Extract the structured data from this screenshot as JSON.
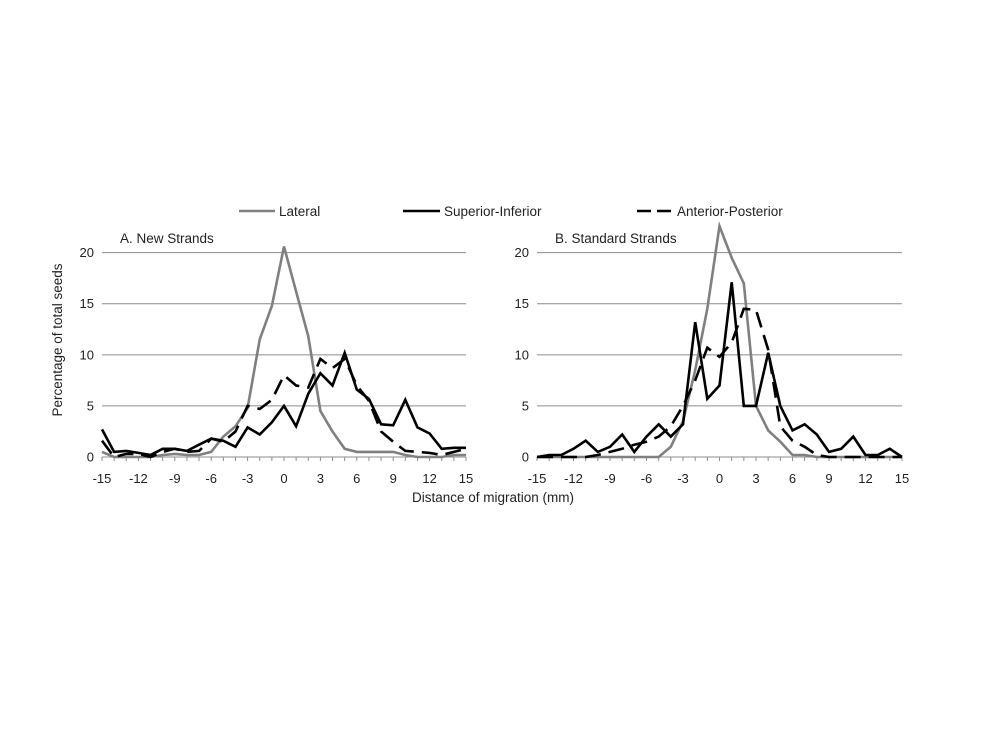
{
  "chart_data": [
    {
      "type": "line",
      "title": "A.  New Strands",
      "xlabel": "Distance of migration (mm)",
      "ylabel": "Percentage of total seeds",
      "xlim": [
        -15,
        15
      ],
      "ylim": [
        0,
        23
      ],
      "xticks": [
        "-15",
        "-12",
        "-9",
        "-6",
        "-3",
        "0",
        "3",
        "6",
        "9",
        "12",
        "15"
      ],
      "yticks": [
        "0",
        "5",
        "10",
        "15",
        "20"
      ],
      "grid": "horizontal",
      "x": [
        -15,
        -14,
        -13,
        -12,
        -11,
        -10,
        -9,
        -8,
        -7,
        -6,
        -5,
        -4,
        -3,
        -2,
        -1,
        0,
        1,
        2,
        3,
        4,
        5,
        6,
        7,
        8,
        9,
        10,
        11,
        12,
        13,
        14,
        15
      ],
      "series": [
        {
          "name": "Lateral",
          "color": "#808080",
          "dash": "solid",
          "values": [
            0.5,
            0,
            0,
            0,
            0,
            0.2,
            0.3,
            0.2,
            0.2,
            0.5,
            2,
            3,
            4.8,
            11.5,
            14.8,
            20.6,
            16.2,
            11.8,
            4.5,
            2.5,
            0.8,
            0.5,
            0.5,
            0.5,
            0.5,
            0.2,
            0,
            0,
            0,
            0.2,
            0.2
          ]
        },
        {
          "name": "Superior-Inferior",
          "color": "#000000",
          "dash": "solid",
          "values": [
            2.7,
            0.5,
            0.6,
            0.4,
            0.2,
            0.8,
            0.8,
            0.6,
            1.2,
            1.8,
            1.6,
            1.0,
            2.9,
            2.2,
            3.4,
            5.0,
            3.0,
            6.2,
            8.2,
            7.0,
            10.2,
            6.6,
            5.7,
            3.2,
            3.1,
            5.6,
            2.9,
            2.3,
            0.8,
            0.9,
            0.9
          ]
        },
        {
          "name": "Anterior-Posterior",
          "color": "#000000",
          "dash": "dashed",
          "values": [
            1.6,
            0,
            0.3,
            0.3,
            0,
            0.5,
            0.8,
            0.5,
            0.6,
            1.8,
            1.5,
            2.5,
            5.0,
            4.7,
            5.6,
            8.0,
            7.0,
            6.8,
            9.6,
            8.7,
            9.6,
            7.0,
            5.5,
            2.5,
            1.5,
            0.6,
            0.5,
            0.4,
            0.2,
            0.5,
            0.8
          ]
        }
      ]
    },
    {
      "type": "line",
      "title": "B.  Standard Strands",
      "xlabel": "Distance of migration (mm)",
      "ylabel": "",
      "xlim": [
        -15,
        15
      ],
      "ylim": [
        0,
        23
      ],
      "xticks": [
        "-15",
        "-12",
        "-9",
        "-6",
        "-3",
        "0",
        "3",
        "6",
        "9",
        "12",
        "15"
      ],
      "yticks": [
        "0",
        "5",
        "10",
        "15",
        "20"
      ],
      "grid": "horizontal",
      "x": [
        -15,
        -14,
        -13,
        -12,
        -11,
        -10,
        -9,
        -8,
        -7,
        -6,
        -5,
        -4,
        -3,
        -2,
        -1,
        0,
        1,
        2,
        3,
        4,
        5,
        6,
        7,
        8,
        9,
        10,
        11,
        12,
        13,
        14,
        15
      ],
      "series": [
        {
          "name": "Lateral",
          "color": "#808080",
          "dash": "solid",
          "values": [
            0,
            0,
            0,
            0,
            0,
            0,
            0,
            0,
            0,
            0,
            0,
            1.0,
            3.5,
            8.5,
            14.5,
            22.6,
            19.5,
            17.0,
            5.0,
            2.6,
            1.5,
            0.2,
            0.2,
            0,
            0,
            0,
            0,
            0,
            0,
            0,
            0
          ]
        },
        {
          "name": "Superior-Inferior",
          "color": "#000000",
          "dash": "solid",
          "values": [
            0,
            0.2,
            0.2,
            0.8,
            1.6,
            0.5,
            1.0,
            2.2,
            0.5,
            2.0,
            3.2,
            2.0,
            3.2,
            13.2,
            5.7,
            7.0,
            17.1,
            5.0,
            5.0,
            10.2,
            5.0,
            2.6,
            3.2,
            2.2,
            0.5,
            0.8,
            2.0,
            0.2,
            0.2,
            0.8,
            0
          ]
        },
        {
          "name": "Anterior-Posterior",
          "color": "#000000",
          "dash": "dashed",
          "values": [
            0,
            0,
            0,
            0,
            0,
            0.2,
            0.5,
            0.8,
            1.2,
            1.5,
            2.0,
            3.0,
            5.0,
            7.5,
            10.7,
            9.8,
            11.2,
            14.5,
            14.4,
            10.5,
            3.0,
            1.6,
            1.0,
            0.2,
            0,
            0,
            0,
            0,
            0,
            0,
            0
          ]
        }
      ]
    }
  ]
}
